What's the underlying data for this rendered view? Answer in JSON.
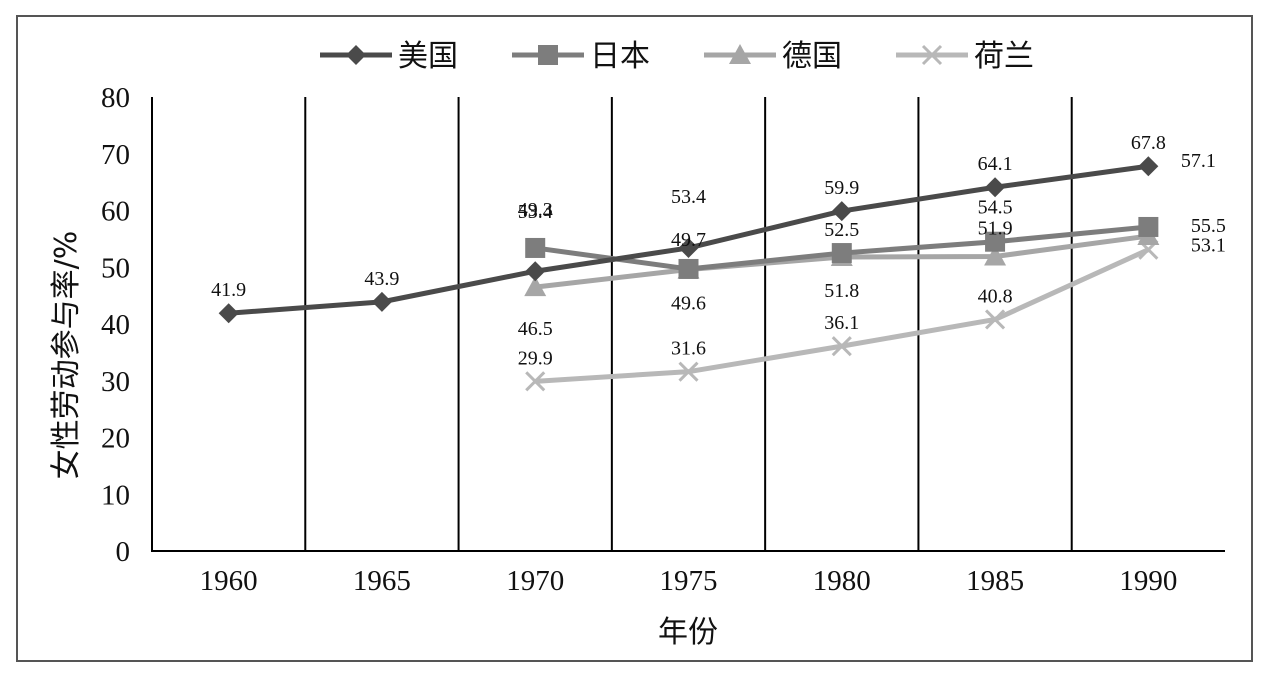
{
  "chart_data": {
    "type": "line",
    "categories": [
      "1960",
      "1965",
      "1970",
      "1975",
      "1980",
      "1985",
      "1990"
    ],
    "xlabel": "年份",
    "ylabel": "女性劳动参与率/%",
    "ylim": [
      0,
      80
    ],
    "yticks": [
      "0",
      "10",
      "20",
      "30",
      "40",
      "50",
      "60",
      "70",
      "80"
    ],
    "grid": "vertical category dividers",
    "legend_position": "top",
    "series": [
      {
        "name": "美国",
        "color": "#4a4a4a",
        "marker": "diamond",
        "values": [
          41.9,
          43.9,
          49.3,
          53.4,
          59.9,
          64.1,
          67.8
        ],
        "labels": [
          "41.9",
          "43.9",
          "49.3",
          "53.4",
          "59.9",
          "64.1",
          "67.8"
        ]
      },
      {
        "name": "日本",
        "color": "#7d7d7d",
        "marker": "square",
        "values": [
          null,
          null,
          53.4,
          49.7,
          52.5,
          54.5,
          57.1
        ],
        "labels": [
          "",
          "",
          "53.4",
          "49.7",
          "52.5",
          "54.5",
          "57.1"
        ]
      },
      {
        "name": "德国",
        "color": "#a6a6a6",
        "marker": "triangle",
        "values": [
          null,
          null,
          46.5,
          49.6,
          51.8,
          51.9,
          55.5
        ],
        "labels": [
          "",
          "",
          "46.5",
          "49.6",
          "51.8",
          "51.9",
          "55.5"
        ]
      },
      {
        "name": "荷兰",
        "color": "#b8b8b8",
        "marker": "x",
        "values": [
          null,
          null,
          29.9,
          31.6,
          36.1,
          40.8,
          53.1
        ],
        "labels": [
          "",
          "",
          "29.9",
          "31.6",
          "36.1",
          "40.8",
          "53.1"
        ]
      }
    ]
  }
}
